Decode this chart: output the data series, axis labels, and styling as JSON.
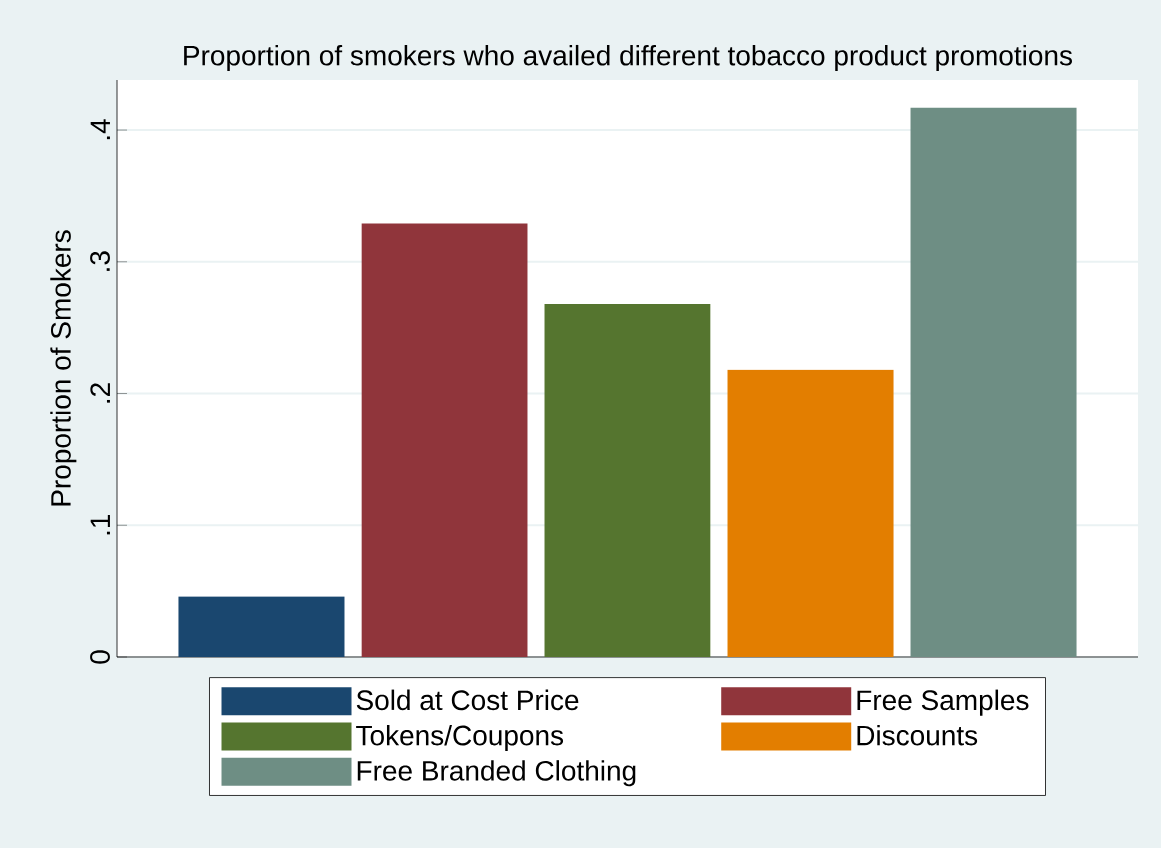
{
  "chart_data": {
    "type": "bar",
    "title": "Proportion of smokers who availed different tobacco product promotions",
    "ylabel": "Proportion of Smokers",
    "categories": [
      null
    ],
    "series": [
      {
        "name": "Sold at Cost Price",
        "color": "#1a476f",
        "values": [
          0.046
        ]
      },
      {
        "name": "Free Samples",
        "color": "#90353b",
        "values": [
          0.329
        ]
      },
      {
        "name": "Tokens/Coupons",
        "color": "#55752f",
        "values": [
          0.268
        ]
      },
      {
        "name": "Discounts",
        "color": "#e37e00",
        "values": [
          0.218
        ]
      },
      {
        "name": "Free Branded Clothing",
        "color": "#6e8e84",
        "values": [
          0.417
        ]
      }
    ],
    "ylim": [
      0,
      0.438
    ],
    "yticks": [
      0,
      {
        "value": 0.1,
        "label": ".1"
      },
      {
        "value": 0.2,
        "label": ".2"
      },
      {
        "value": 0.3,
        "label": ".3"
      },
      {
        "value": 0.4,
        "label": ".4"
      }
    ],
    "grid": "y",
    "legend": "bottom"
  }
}
